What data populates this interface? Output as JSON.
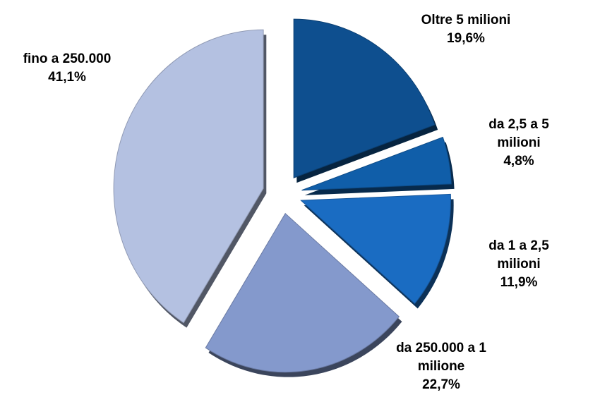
{
  "chart_data": {
    "type": "pie",
    "categories": [
      "Oltre 5 milioni",
      "da 2,5 a 5 milioni",
      "da 1 a 2,5 milioni",
      "da 250.000 a 1 milione",
      "fino a 250.000"
    ],
    "values": [
      19.6,
      4.8,
      11.9,
      22.7,
      41.1
    ],
    "value_labels": [
      "19,6%",
      "4,8%",
      "11,9%",
      "22,7%",
      "41,1%"
    ],
    "colors": [
      "#0e4f8f",
      "#105ea9",
      "#1a6cc2",
      "#8499cc",
      "#b4c1e1"
    ]
  }
}
